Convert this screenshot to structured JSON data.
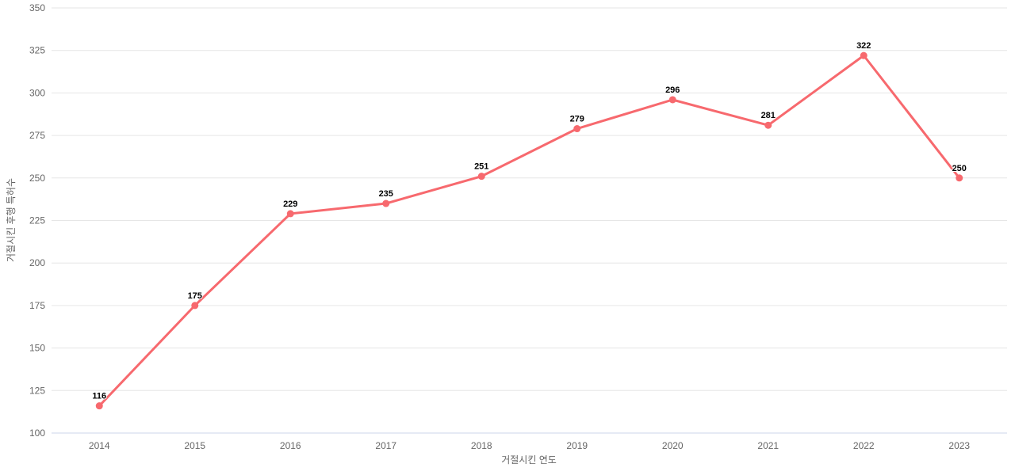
{
  "chart_data": {
    "type": "line",
    "categories": [
      "2014",
      "2015",
      "2016",
      "2017",
      "2018",
      "2019",
      "2020",
      "2021",
      "2022",
      "2023"
    ],
    "values": [
      116,
      175,
      229,
      235,
      251,
      279,
      296,
      281,
      322,
      250
    ],
    "data_labels": [
      116,
      175,
      229,
      235,
      251,
      279,
      296,
      281,
      322,
      250
    ],
    "title": "",
    "xlabel": "거절시킨 연도",
    "ylabel": "거절시킨 후행 특허수",
    "ylim": [
      100,
      350
    ],
    "ytick_step": 25,
    "yticks": [
      100,
      125,
      150,
      175,
      200,
      225,
      250,
      275,
      300,
      325,
      350
    ],
    "grid": true,
    "legend": false,
    "colors": {
      "line": "#f7696e",
      "marker": "#f7696e",
      "gridline": "#e6e6e6",
      "axis_line": "#ccd6eb",
      "tick_label": "#666666",
      "data_label": "#000000",
      "background": "#ffffff"
    }
  }
}
